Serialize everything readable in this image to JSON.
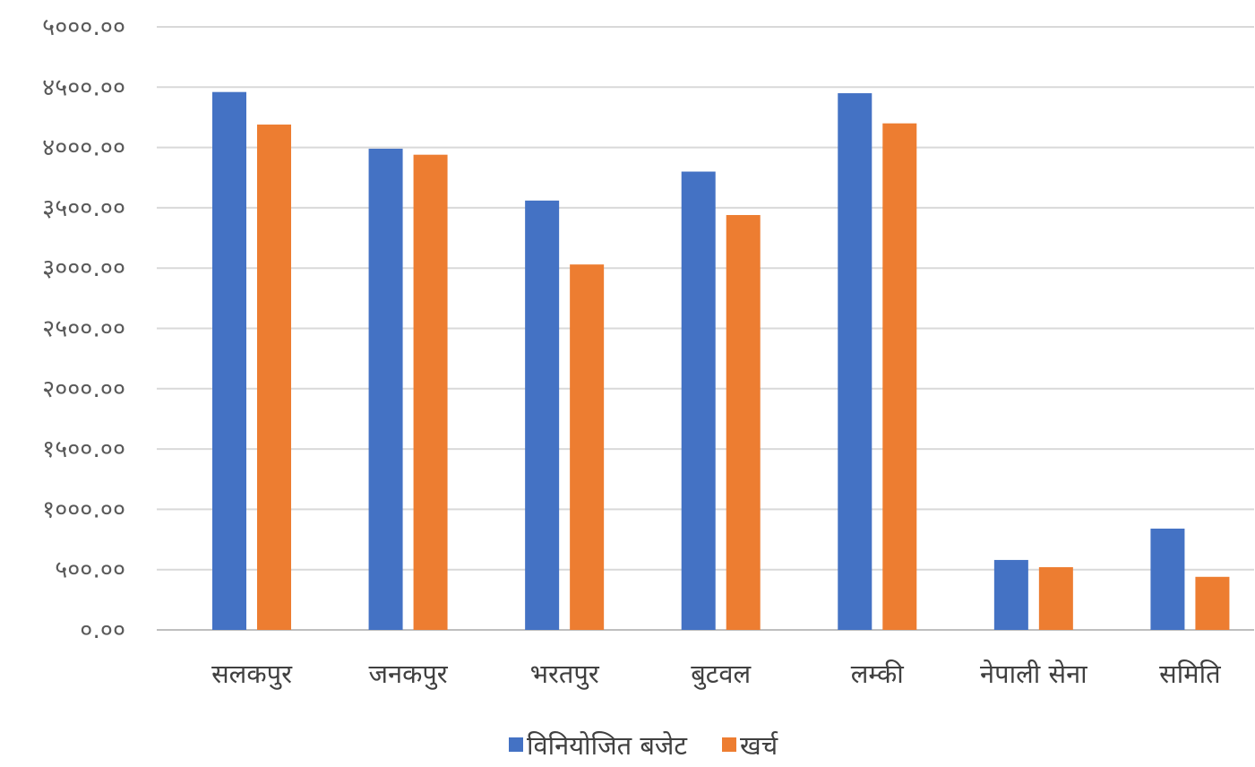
{
  "chart_data": {
    "type": "bar",
    "categories": [
      "सलकपुर",
      "जनकपुर",
      "भरतपुर",
      "बुटवल",
      "लम्की",
      "नेपाली सेना",
      "समिति"
    ],
    "series": [
      {
        "name": "विनियोजित बजेट",
        "color": "#4472C4",
        "values": [
          4460,
          3990,
          3560,
          3800,
          4450,
          580,
          840
        ]
      },
      {
        "name": "खर्च",
        "color": "#ED7D31",
        "values": [
          4190,
          3940,
          3030,
          3440,
          4200,
          520,
          440
        ]
      }
    ],
    "yticks": [
      "०.००",
      "५००.००",
      "१०००.००",
      "१५००.००",
      "२०००.००",
      "२५००.००",
      "३०००.००",
      "३५००.००",
      "४०००.००",
      "४५००.००",
      "५०००.००"
    ],
    "ylim": [
      0,
      5000
    ],
    "grid": true,
    "legend_position": "bottom"
  }
}
